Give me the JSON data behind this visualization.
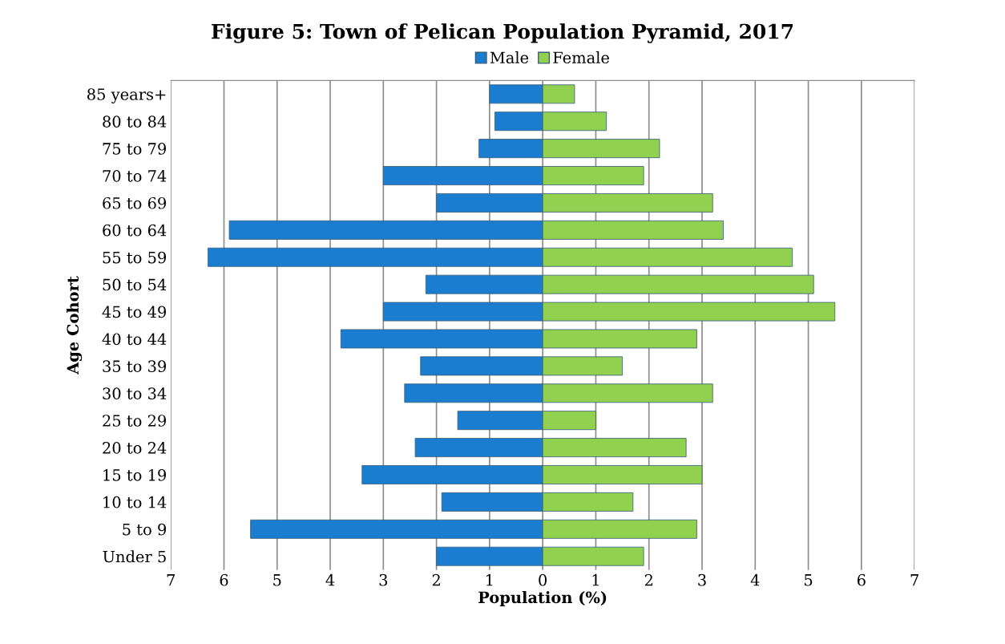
{
  "chart_data": {
    "type": "bar",
    "orientation": "horizontal",
    "title": "Figure 5: Town of Pelican Population Pyramid, 2017",
    "xlabel": "Population (%)",
    "ylabel": "Age Cohort",
    "categories": [
      "85 years+",
      "80 to 84",
      "75 to 79",
      "70 to 74",
      "65 to 69",
      "60 to 64",
      "55 to 59",
      "50 to 54",
      "45 to 49",
      "40 to 44",
      "35 to 39",
      "30 to 34",
      "25 to 29",
      "20 to 24",
      "15 to 19",
      "10 to 14",
      "5 to 9",
      "Under 5"
    ],
    "series": [
      {
        "name": "Male",
        "color": "#1a7dd0",
        "values": [
          -1.0,
          -0.9,
          -1.2,
          -3.0,
          -2.0,
          -5.9,
          -6.3,
          -2.2,
          -3.0,
          -3.8,
          -2.3,
          -2.6,
          -1.6,
          -2.4,
          -3.4,
          -1.9,
          -5.5,
          -2.0
        ]
      },
      {
        "name": "Female",
        "color": "#92d050",
        "values": [
          0.6,
          1.2,
          2.2,
          1.9,
          3.2,
          3.4,
          4.7,
          5.1,
          5.5,
          2.9,
          1.5,
          3.2,
          1.0,
          2.7,
          3.0,
          1.7,
          2.9,
          1.9
        ]
      }
    ],
    "xlim": [
      -7,
      7
    ],
    "xticks": [
      {
        "value": -7,
        "label": "7"
      },
      {
        "value": -6,
        "label": "6"
      },
      {
        "value": -5,
        "label": "5"
      },
      {
        "value": -4,
        "label": "4"
      },
      {
        "value": -3,
        "label": "3"
      },
      {
        "value": -2,
        "label": "2"
      },
      {
        "value": -1,
        "label": "1"
      },
      0,
      1,
      2,
      3,
      4,
      5,
      6,
      7
    ],
    "stacked": true,
    "grid": "x",
    "legend": "top"
  }
}
